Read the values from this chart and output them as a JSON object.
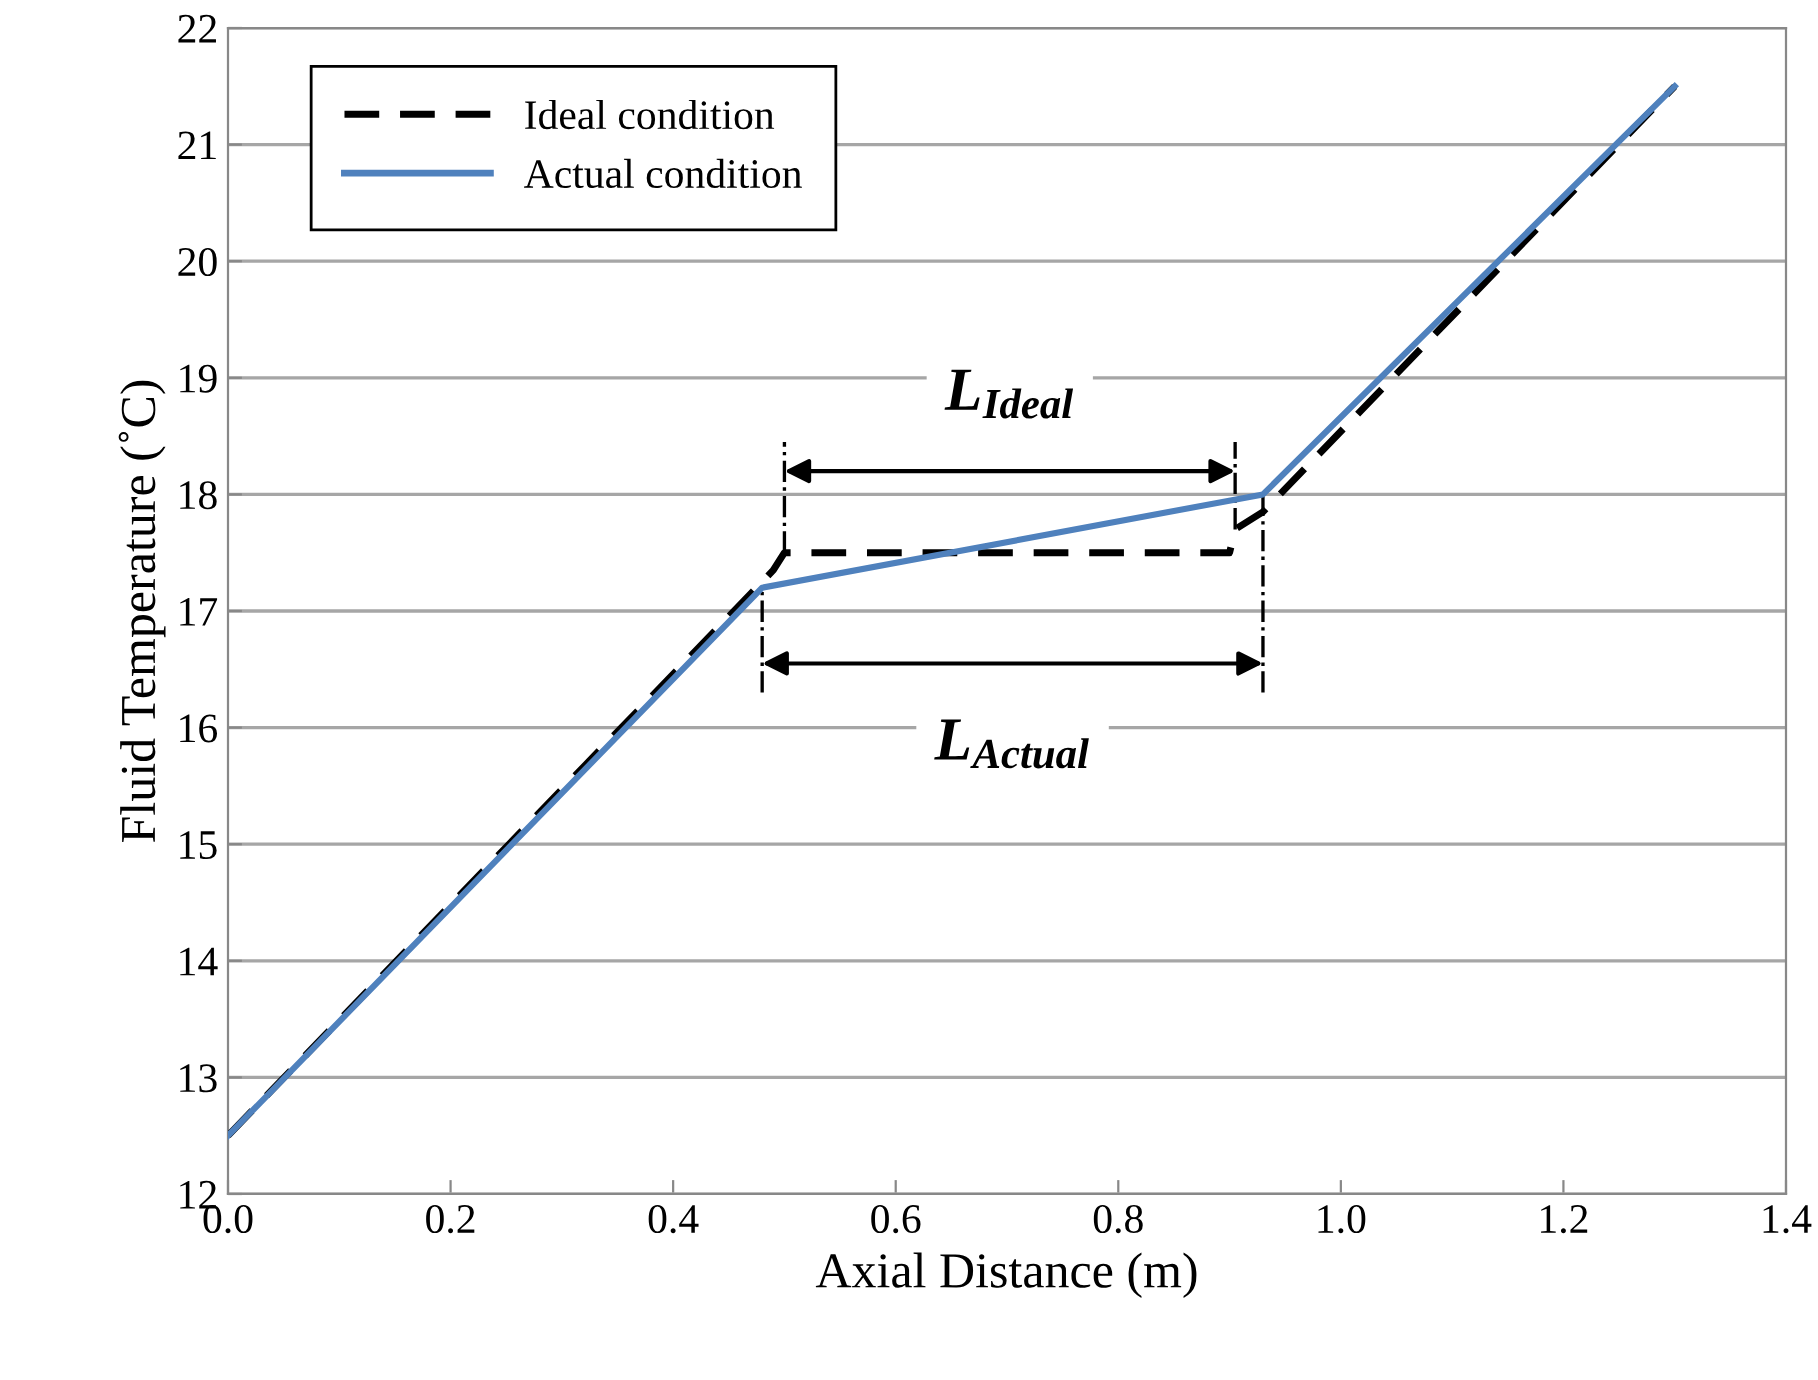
{
  "chart_data": {
    "type": "line",
    "xlabel": "Axial Distance (m)",
    "ylabel": "Fluid Temperature (˚C)",
    "series": [
      {
        "name": "Ideal condition",
        "color": "#000000",
        "line_style": "dashed",
        "x": [
          0,
          0.49,
          0.5,
          0.9,
          0.905,
          0.93,
          1.3
        ],
        "values": [
          12.5,
          17.35,
          17.5,
          17.5,
          17.7,
          17.85,
          21.5
        ]
      },
      {
        "name": "Actual condition",
        "color": "#4f81bd",
        "line_style": "solid",
        "x": [
          0,
          0.48,
          0.93,
          1.3
        ],
        "values": [
          12.5,
          17.2,
          18.0,
          21.5
        ]
      }
    ],
    "xlim": [
      0,
      1.4
    ],
    "xticks": [
      {
        "value": 0,
        "label": "0.0"
      },
      0.2,
      0.4,
      0.6,
      0.8,
      {
        "value": 1,
        "label": "1.0"
      },
      1.2,
      1.4
    ],
    "ylim": [
      12,
      22
    ],
    "yticks": [
      12,
      13,
      14,
      15,
      16,
      17,
      18,
      19,
      20,
      21,
      22
    ],
    "grid": "y",
    "legend": "top left",
    "marker": "none",
    "annotations": [
      "L$_{Ideal}$",
      "L$_{Actual}$"
    ]
  }
}
